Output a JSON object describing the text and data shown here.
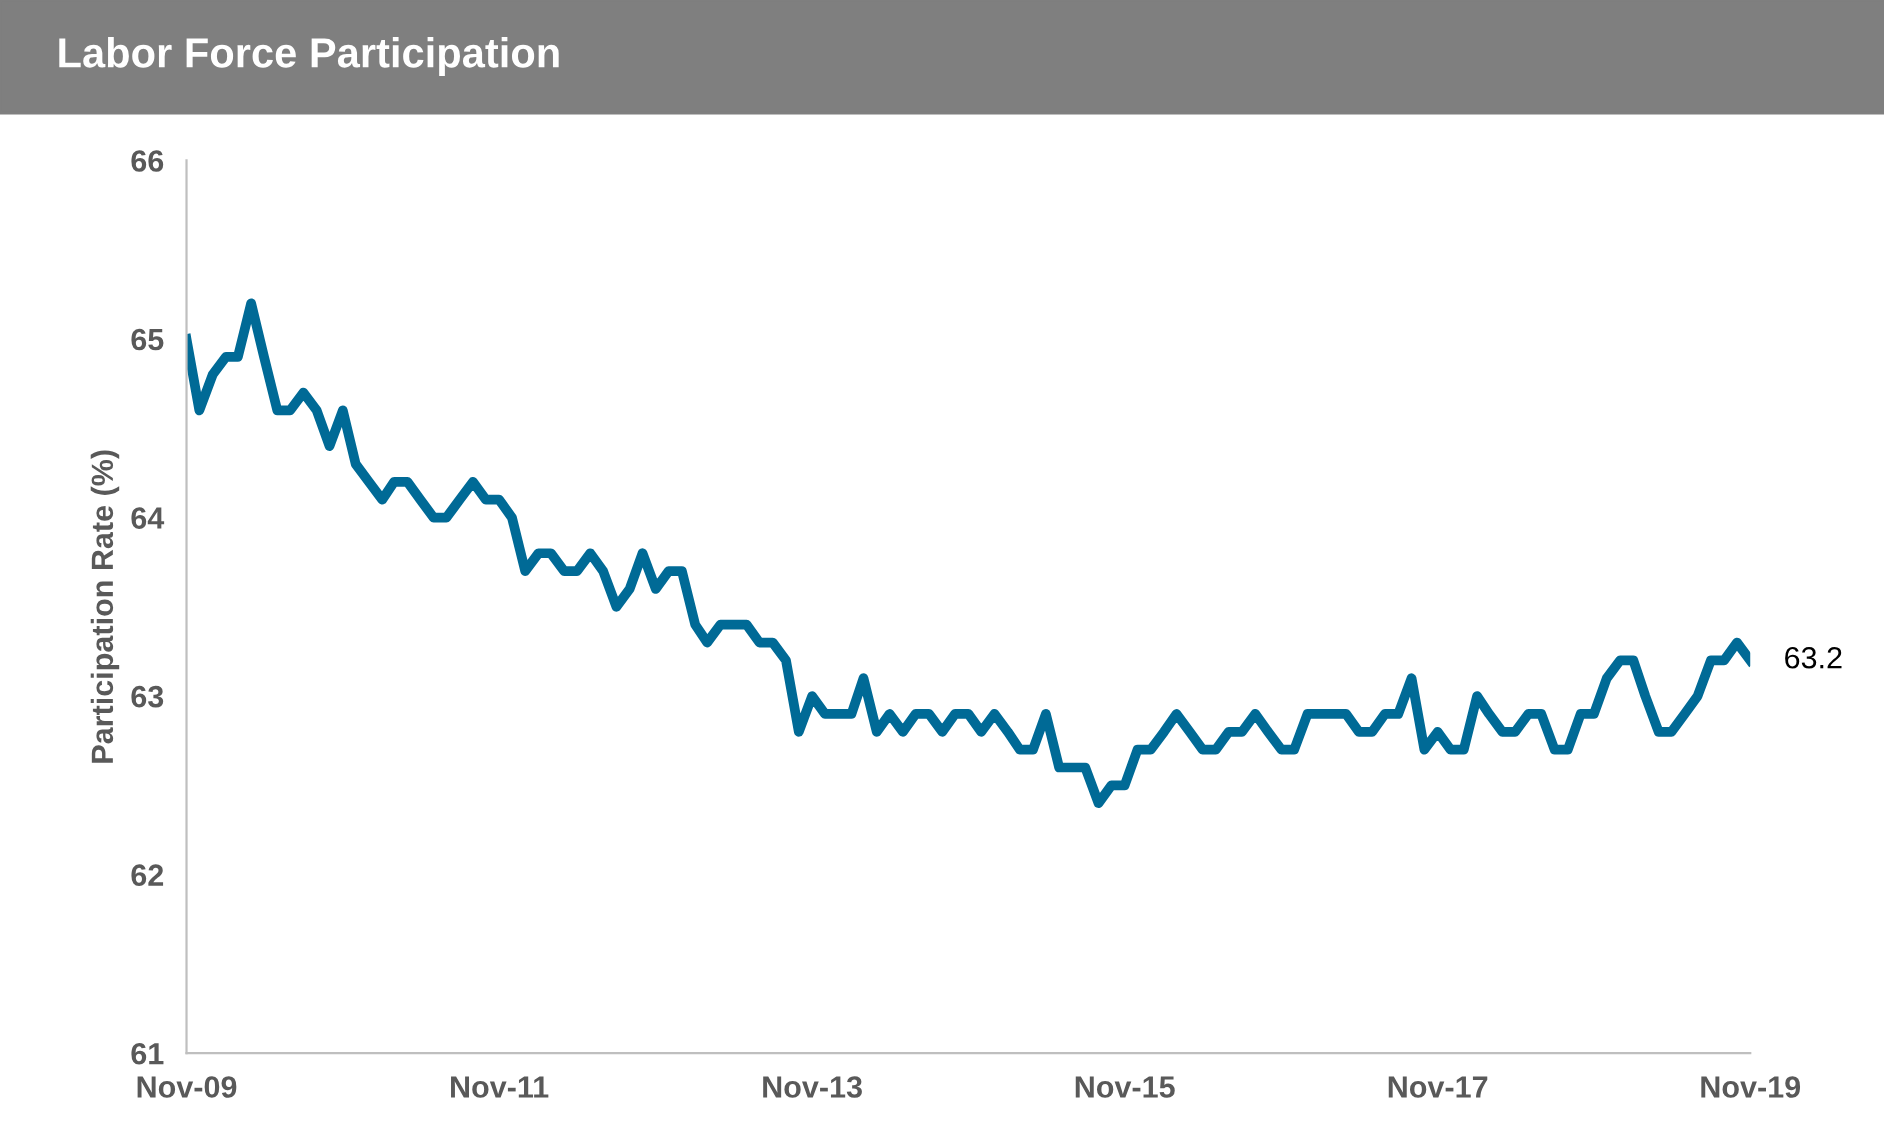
{
  "chart_data": {
    "type": "line",
    "title": "Labor Force Participation",
    "ylabel": "Participation Rate (%)",
    "x": [
      "2009-11",
      "2009-12",
      "2010-01",
      "2010-02",
      "2010-03",
      "2010-04",
      "2010-05",
      "2010-06",
      "2010-07",
      "2010-08",
      "2010-09",
      "2010-10",
      "2010-11",
      "2010-12",
      "2011-01",
      "2011-02",
      "2011-03",
      "2011-04",
      "2011-05",
      "2011-06",
      "2011-07",
      "2011-08",
      "2011-09",
      "2011-10",
      "2011-11",
      "2011-12",
      "2012-01",
      "2012-02",
      "2012-03",
      "2012-04",
      "2012-05",
      "2012-06",
      "2012-07",
      "2012-08",
      "2012-09",
      "2012-10",
      "2012-11",
      "2012-12",
      "2013-01",
      "2013-02",
      "2013-03",
      "2013-04",
      "2013-05",
      "2013-06",
      "2013-07",
      "2013-08",
      "2013-09",
      "2013-10",
      "2013-11",
      "2013-12",
      "2014-01",
      "2014-02",
      "2014-03",
      "2014-04",
      "2014-05",
      "2014-06",
      "2014-07",
      "2014-08",
      "2014-09",
      "2014-10",
      "2014-11",
      "2014-12",
      "2015-01",
      "2015-02",
      "2015-03",
      "2015-04",
      "2015-05",
      "2015-06",
      "2015-07",
      "2015-08",
      "2015-09",
      "2015-10",
      "2015-11",
      "2015-12",
      "2016-01",
      "2016-02",
      "2016-03",
      "2016-04",
      "2016-05",
      "2016-06",
      "2016-07",
      "2016-08",
      "2016-09",
      "2016-10",
      "2016-11",
      "2016-12",
      "2017-01",
      "2017-02",
      "2017-03",
      "2017-04",
      "2017-05",
      "2017-06",
      "2017-07",
      "2017-08",
      "2017-09",
      "2017-10",
      "2017-11",
      "2017-12",
      "2018-01",
      "2018-02",
      "2018-03",
      "2018-04",
      "2018-05",
      "2018-06",
      "2018-07",
      "2018-08",
      "2018-09",
      "2018-10",
      "2018-11",
      "2018-12",
      "2019-01",
      "2019-02",
      "2019-03",
      "2019-04",
      "2019-05",
      "2019-06",
      "2019-07",
      "2019-08",
      "2019-09",
      "2019-10",
      "2019-11"
    ],
    "series": [
      {
        "color": "#006a96",
        "values": [
          65.0,
          64.6,
          64.8,
          64.9,
          64.9,
          65.2,
          64.9,
          64.6,
          64.6,
          64.7,
          64.6,
          64.4,
          64.6,
          64.3,
          64.2,
          64.1,
          64.2,
          64.2,
          64.1,
          64.0,
          64.0,
          64.1,
          64.2,
          64.1,
          64.1,
          64.0,
          63.7,
          63.8,
          63.8,
          63.7,
          63.7,
          63.8,
          63.7,
          63.5,
          63.6,
          63.8,
          63.6,
          63.7,
          63.7,
          63.4,
          63.3,
          63.4,
          63.4,
          63.4,
          63.3,
          63.3,
          63.2,
          62.8,
          63.0,
          62.9,
          62.9,
          62.9,
          63.1,
          62.8,
          62.9,
          62.8,
          62.9,
          62.9,
          62.8,
          62.9,
          62.9,
          62.8,
          62.9,
          62.8,
          62.7,
          62.7,
          62.9,
          62.6,
          62.6,
          62.6,
          62.4,
          62.5,
          62.5,
          62.7,
          62.7,
          62.8,
          62.9,
          62.8,
          62.7,
          62.7,
          62.8,
          62.8,
          62.9,
          62.8,
          62.7,
          62.7,
          62.9,
          62.9,
          62.9,
          62.9,
          62.8,
          62.8,
          62.9,
          62.9,
          63.1,
          62.7,
          62.8,
          62.7,
          62.7,
          63.0,
          62.9,
          62.8,
          62.8,
          62.9,
          62.9,
          62.7,
          62.7,
          62.9,
          62.9,
          63.1,
          63.2,
          63.2,
          63.0,
          62.8,
          62.8,
          62.9,
          63.0,
          63.2,
          63.2,
          63.3,
          63.2
        ],
        "value_labels": [
          null,
          null,
          null,
          null,
          null,
          null,
          null,
          null,
          null,
          null,
          null,
          null,
          null,
          null,
          null,
          null,
          null,
          null,
          null,
          null,
          null,
          null,
          null,
          null,
          null,
          null,
          null,
          null,
          null,
          null,
          null,
          null,
          null,
          null,
          null,
          null,
          null,
          null,
          null,
          null,
          null,
          null,
          null,
          null,
          null,
          null,
          null,
          null,
          null,
          null,
          null,
          null,
          null,
          null,
          null,
          null,
          null,
          null,
          null,
          null,
          null,
          null,
          null,
          null,
          null,
          null,
          null,
          null,
          null,
          null,
          null,
          null,
          null,
          null,
          null,
          null,
          null,
          null,
          null,
          null,
          null,
          null,
          null,
          null,
          null,
          null,
          null,
          null,
          null,
          null,
          null,
          null,
          null,
          null,
          null,
          null,
          null,
          null,
          null,
          null,
          null,
          null,
          null,
          null,
          null,
          null,
          null,
          null,
          null,
          null,
          null,
          null,
          null,
          null,
          null,
          null,
          null,
          null,
          null,
          null,
          "63.2"
        ]
      }
    ],
    "xlim": [
      "2009-11",
      "2019-11"
    ],
    "xticks": [
      {
        "value": "2009-11",
        "label": "Nov-09"
      },
      {
        "value": "2011-11",
        "label": "Nov-11"
      },
      {
        "value": "2013-11",
        "label": "Nov-13"
      },
      {
        "value": "2015-11",
        "label": "Nov-15"
      },
      {
        "value": "2017-11",
        "label": "Nov-17"
      },
      {
        "value": "2019-11",
        "label": "Nov-19"
      }
    ],
    "ylim": [
      61,
      66
    ],
    "yticks": [
      61,
      62,
      63,
      64,
      65,
      66
    ],
    "grid": false,
    "marker": "none",
    "line_style": "solid"
  }
}
